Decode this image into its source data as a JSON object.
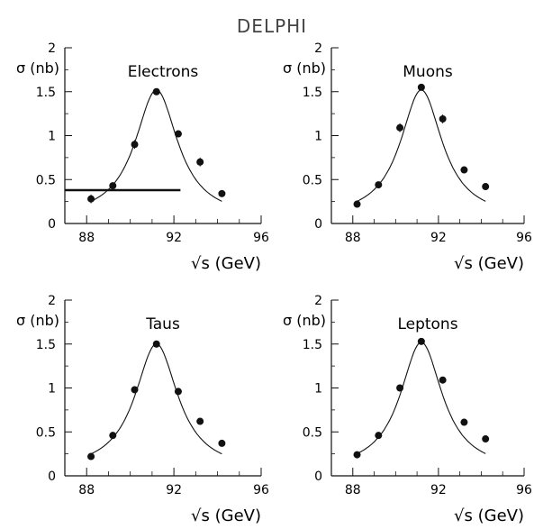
{
  "figure_title": "DELPHI",
  "chart_data": [
    {
      "type": "scatter",
      "title": "Electrons",
      "xlabel": "√s (GeV)",
      "ylabel": "σ (nb)",
      "xlim": [
        87,
        96
      ],
      "ylim": [
        0,
        2
      ],
      "xticks": [
        "88",
        "92",
        "96"
      ],
      "yticks": [
        "0",
        "0.5",
        "1",
        "1.5",
        "2"
      ],
      "series": [
        {
          "x": [
            88.2,
            89.2,
            90.2,
            91.2,
            92.2,
            93.2,
            94.2
          ],
          "y": [
            0.28,
            0.43,
            0.9,
            1.5,
            1.02,
            0.7,
            0.34
          ],
          "err": [
            0.05,
            0.03,
            0.05,
            0.02,
            0.04,
            0.05,
            0.03
          ]
        }
      ],
      "fit": {
        "peak_x": 91.2,
        "peak_y": 1.52,
        "width": 2.4,
        "base": 0.05
      },
      "hline": {
        "y": 0.38,
        "x_from": 87,
        "x_to": 92.3
      }
    },
    {
      "type": "scatter",
      "title": "Muons",
      "xlabel": "√s (GeV)",
      "ylabel": "σ (nb)",
      "xlim": [
        87,
        96
      ],
      "ylim": [
        0,
        2
      ],
      "xticks": [
        "88",
        "92",
        "96"
      ],
      "yticks": [
        "0",
        "0.5",
        "1",
        "1.5",
        "2"
      ],
      "series": [
        {
          "x": [
            88.2,
            89.2,
            90.2,
            91.2,
            92.2,
            93.2,
            94.2
          ],
          "y": [
            0.22,
            0.44,
            1.09,
            1.55,
            1.19,
            0.61,
            0.42
          ],
          "err": [
            0.03,
            0.03,
            0.05,
            0.03,
            0.05,
            0.03,
            0.03
          ]
        }
      ],
      "fit": {
        "peak_x": 91.2,
        "peak_y": 1.52,
        "width": 2.4,
        "base": 0.05
      }
    },
    {
      "type": "scatter",
      "title": "Taus",
      "xlabel": "√s (GeV)",
      "ylabel": "σ (nb)",
      "xlim": [
        87,
        96
      ],
      "ylim": [
        0,
        2
      ],
      "xticks": [
        "88",
        "92",
        "96"
      ],
      "yticks": [
        "0",
        "0.5",
        "1",
        "1.5",
        "2"
      ],
      "series": [
        {
          "x": [
            88.2,
            89.2,
            90.2,
            91.2,
            92.2,
            93.2,
            94.2
          ],
          "y": [
            0.22,
            0.46,
            0.98,
            1.5,
            0.96,
            0.62,
            0.37
          ],
          "err": [
            0.03,
            0.03,
            0.04,
            0.02,
            0.04,
            0.03,
            0.03
          ]
        }
      ],
      "fit": {
        "peak_x": 91.2,
        "peak_y": 1.5,
        "width": 2.4,
        "base": 0.05
      }
    },
    {
      "type": "scatter",
      "title": "Leptons",
      "xlabel": "√s (GeV)",
      "ylabel": "σ (nb)",
      "xlim": [
        87,
        96
      ],
      "ylim": [
        0,
        2
      ],
      "xticks": [
        "88",
        "92",
        "96"
      ],
      "yticks": [
        "0",
        "0.5",
        "1",
        "1.5",
        "2"
      ],
      "series": [
        {
          "x": [
            88.2,
            89.2,
            90.2,
            91.2,
            92.2,
            93.2,
            94.2
          ],
          "y": [
            0.24,
            0.46,
            1.0,
            1.53,
            1.09,
            0.61,
            0.42
          ],
          "err": [
            0.02,
            0.02,
            0.03,
            0.02,
            0.03,
            0.02,
            0.02
          ]
        }
      ],
      "fit": {
        "peak_x": 91.2,
        "peak_y": 1.52,
        "width": 2.4,
        "base": 0.05
      }
    }
  ]
}
